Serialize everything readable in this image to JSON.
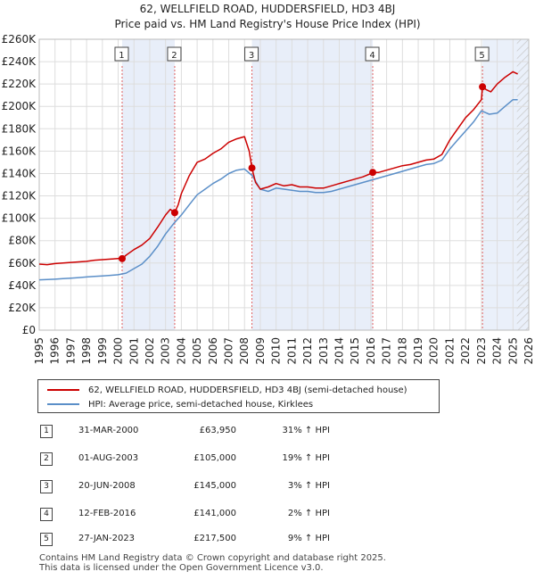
{
  "title": "62, WELLFIELD ROAD, HUDDERSFIELD, HD3 4BJ",
  "subtitle": "Price paid vs. HM Land Registry's House Price Index (HPI)",
  "chart_data": {
    "type": "line",
    "ylim": [
      0,
      260000
    ],
    "xlim": [
      1995,
      2026
    ],
    "yticks": [
      "£0",
      "£20K",
      "£40K",
      "£60K",
      "£80K",
      "£100K",
      "£120K",
      "£140K",
      "£160K",
      "£180K",
      "£200K",
      "£220K",
      "£240K",
      "£260K"
    ],
    "ytick_values": [
      0,
      20000,
      40000,
      60000,
      80000,
      100000,
      120000,
      140000,
      160000,
      180000,
      200000,
      220000,
      240000,
      260000
    ],
    "xticks": [
      "1995",
      "1996",
      "1997",
      "1998",
      "1999",
      "2000",
      "2001",
      "2002",
      "2003",
      "2004",
      "2005",
      "2006",
      "2007",
      "2008",
      "2009",
      "2010",
      "2011",
      "2012",
      "2013",
      "2014",
      "2015",
      "2016",
      "2017",
      "2018",
      "2019",
      "2020",
      "2021",
      "2022",
      "2023",
      "2024",
      "2025",
      "2026"
    ],
    "grid": true,
    "series": [
      {
        "name": "62, WELLFIELD ROAD, HUDDERSFIELD, HD3 4BJ (semi-detached house)",
        "color": "#cc0000",
        "x": [
          1995.0,
          1995.5,
          1996.0,
          1996.5,
          1997.0,
          1997.5,
          1998.0,
          1998.5,
          1999.0,
          1999.5,
          2000.0,
          2000.25,
          2000.5,
          2001.0,
          2001.5,
          2002.0,
          2002.5,
          2003.0,
          2003.3,
          2003.58,
          2003.8,
          2004.0,
          2004.5,
          2005.0,
          2005.5,
          2006.0,
          2006.5,
          2007.0,
          2007.5,
          2008.0,
          2008.3,
          2008.47,
          2008.7,
          2009.0,
          2009.5,
          2010.0,
          2010.5,
          2011.0,
          2011.5,
          2012.0,
          2012.5,
          2013.0,
          2013.5,
          2014.0,
          2014.5,
          2015.0,
          2015.5,
          2016.0,
          2016.12,
          2016.5,
          2017.0,
          2017.5,
          2018.0,
          2018.5,
          2019.0,
          2019.5,
          2020.0,
          2020.5,
          2021.0,
          2021.5,
          2022.0,
          2022.5,
          2023.0,
          2023.07,
          2023.3,
          2023.6,
          2024.0,
          2024.5,
          2025.0,
          2025.3
        ],
        "values": [
          59000,
          58500,
          59500,
          60000,
          60500,
          61000,
          61500,
          62500,
          63000,
          63500,
          64000,
          63950,
          67000,
          72000,
          76000,
          82000,
          92000,
          103000,
          108000,
          105000,
          112000,
          122000,
          138000,
          150000,
          153000,
          158000,
          162000,
          168000,
          171000,
          173000,
          160000,
          145000,
          132000,
          126000,
          128000,
          131000,
          129000,
          130000,
          128000,
          128000,
          127000,
          127000,
          129000,
          131000,
          133000,
          135000,
          137000,
          140000,
          141000,
          141000,
          143000,
          145000,
          147000,
          148000,
          150000,
          152000,
          153000,
          157000,
          170000,
          180000,
          190000,
          197000,
          206000,
          217500,
          215000,
          213000,
          220000,
          226000,
          231000,
          229000
        ],
        "markers": [
          [
            2000.25,
            63950
          ],
          [
            2003.58,
            105000
          ],
          [
            2008.47,
            145000
          ],
          [
            2016.12,
            141000
          ],
          [
            2023.07,
            217500
          ]
        ]
      },
      {
        "name": "HPI: Average price, semi-detached house, Kirklees",
        "color": "#5b8fc8",
        "x": [
          1995.0,
          1995.5,
          1996.0,
          1996.5,
          1997.0,
          1997.5,
          1998.0,
          1998.5,
          1999.0,
          1999.5,
          2000.0,
          2000.5,
          2001.0,
          2001.5,
          2002.0,
          2002.5,
          2003.0,
          2003.5,
          2004.0,
          2004.5,
          2005.0,
          2005.5,
          2006.0,
          2006.5,
          2007.0,
          2007.5,
          2008.0,
          2008.5,
          2009.0,
          2009.5,
          2010.0,
          2010.5,
          2011.0,
          2011.5,
          2012.0,
          2012.5,
          2013.0,
          2013.5,
          2014.0,
          2014.5,
          2015.0,
          2015.5,
          2016.0,
          2016.5,
          2017.0,
          2017.5,
          2018.0,
          2018.5,
          2019.0,
          2019.5,
          2020.0,
          2020.5,
          2021.0,
          2021.5,
          2022.0,
          2022.5,
          2023.0,
          2023.5,
          2024.0,
          2024.5,
          2025.0,
          2025.3
        ],
        "values": [
          45000,
          45200,
          45500,
          46000,
          46500,
          47000,
          47500,
          48000,
          48500,
          49000,
          49500,
          51000,
          55000,
          59000,
          66000,
          75000,
          86000,
          95000,
          103000,
          112000,
          121000,
          126000,
          131000,
          135000,
          140000,
          143000,
          144000,
          138000,
          126000,
          124000,
          127000,
          126000,
          125000,
          124000,
          124000,
          123000,
          123000,
          124000,
          126000,
          128000,
          130000,
          132000,
          134000,
          136000,
          138000,
          140000,
          142000,
          144000,
          146000,
          148000,
          149000,
          152000,
          162000,
          170000,
          178000,
          186000,
          196000,
          193000,
          194000,
          200000,
          206000,
          206000
        ]
      }
    ],
    "sale_vlines": [
      {
        "label": "1",
        "x": 2000.25
      },
      {
        "label": "2",
        "x": 2003.58
      },
      {
        "label": "3",
        "x": 2008.47
      },
      {
        "label": "4",
        "x": 2016.12
      },
      {
        "label": "5",
        "x": 2023.07
      }
    ]
  },
  "legend": {
    "property_label": "62, WELLFIELD ROAD, HUDDERSFIELD, HD3 4BJ (semi-detached house)",
    "hpi_label": "HPI: Average price, semi-detached house, Kirklees"
  },
  "sales": [
    {
      "num": "1",
      "date": "31-MAR-2000",
      "price": "£63,950",
      "hpi": "31% ↑ HPI"
    },
    {
      "num": "2",
      "date": "01-AUG-2003",
      "price": "£105,000",
      "hpi": "19% ↑ HPI"
    },
    {
      "num": "3",
      "date": "20-JUN-2008",
      "price": "£145,000",
      "hpi": "3% ↑ HPI"
    },
    {
      "num": "4",
      "date": "12-FEB-2016",
      "price": "£141,000",
      "hpi": "2% ↑ HPI"
    },
    {
      "num": "5",
      "date": "27-JAN-2023",
      "price": "£217,500",
      "hpi": "9% ↑ HPI"
    }
  ],
  "footer": {
    "line1": "Contains HM Land Registry data © Crown copyright and database right 2025.",
    "line2": "This data is licensed under the Open Government Licence v3.0."
  }
}
